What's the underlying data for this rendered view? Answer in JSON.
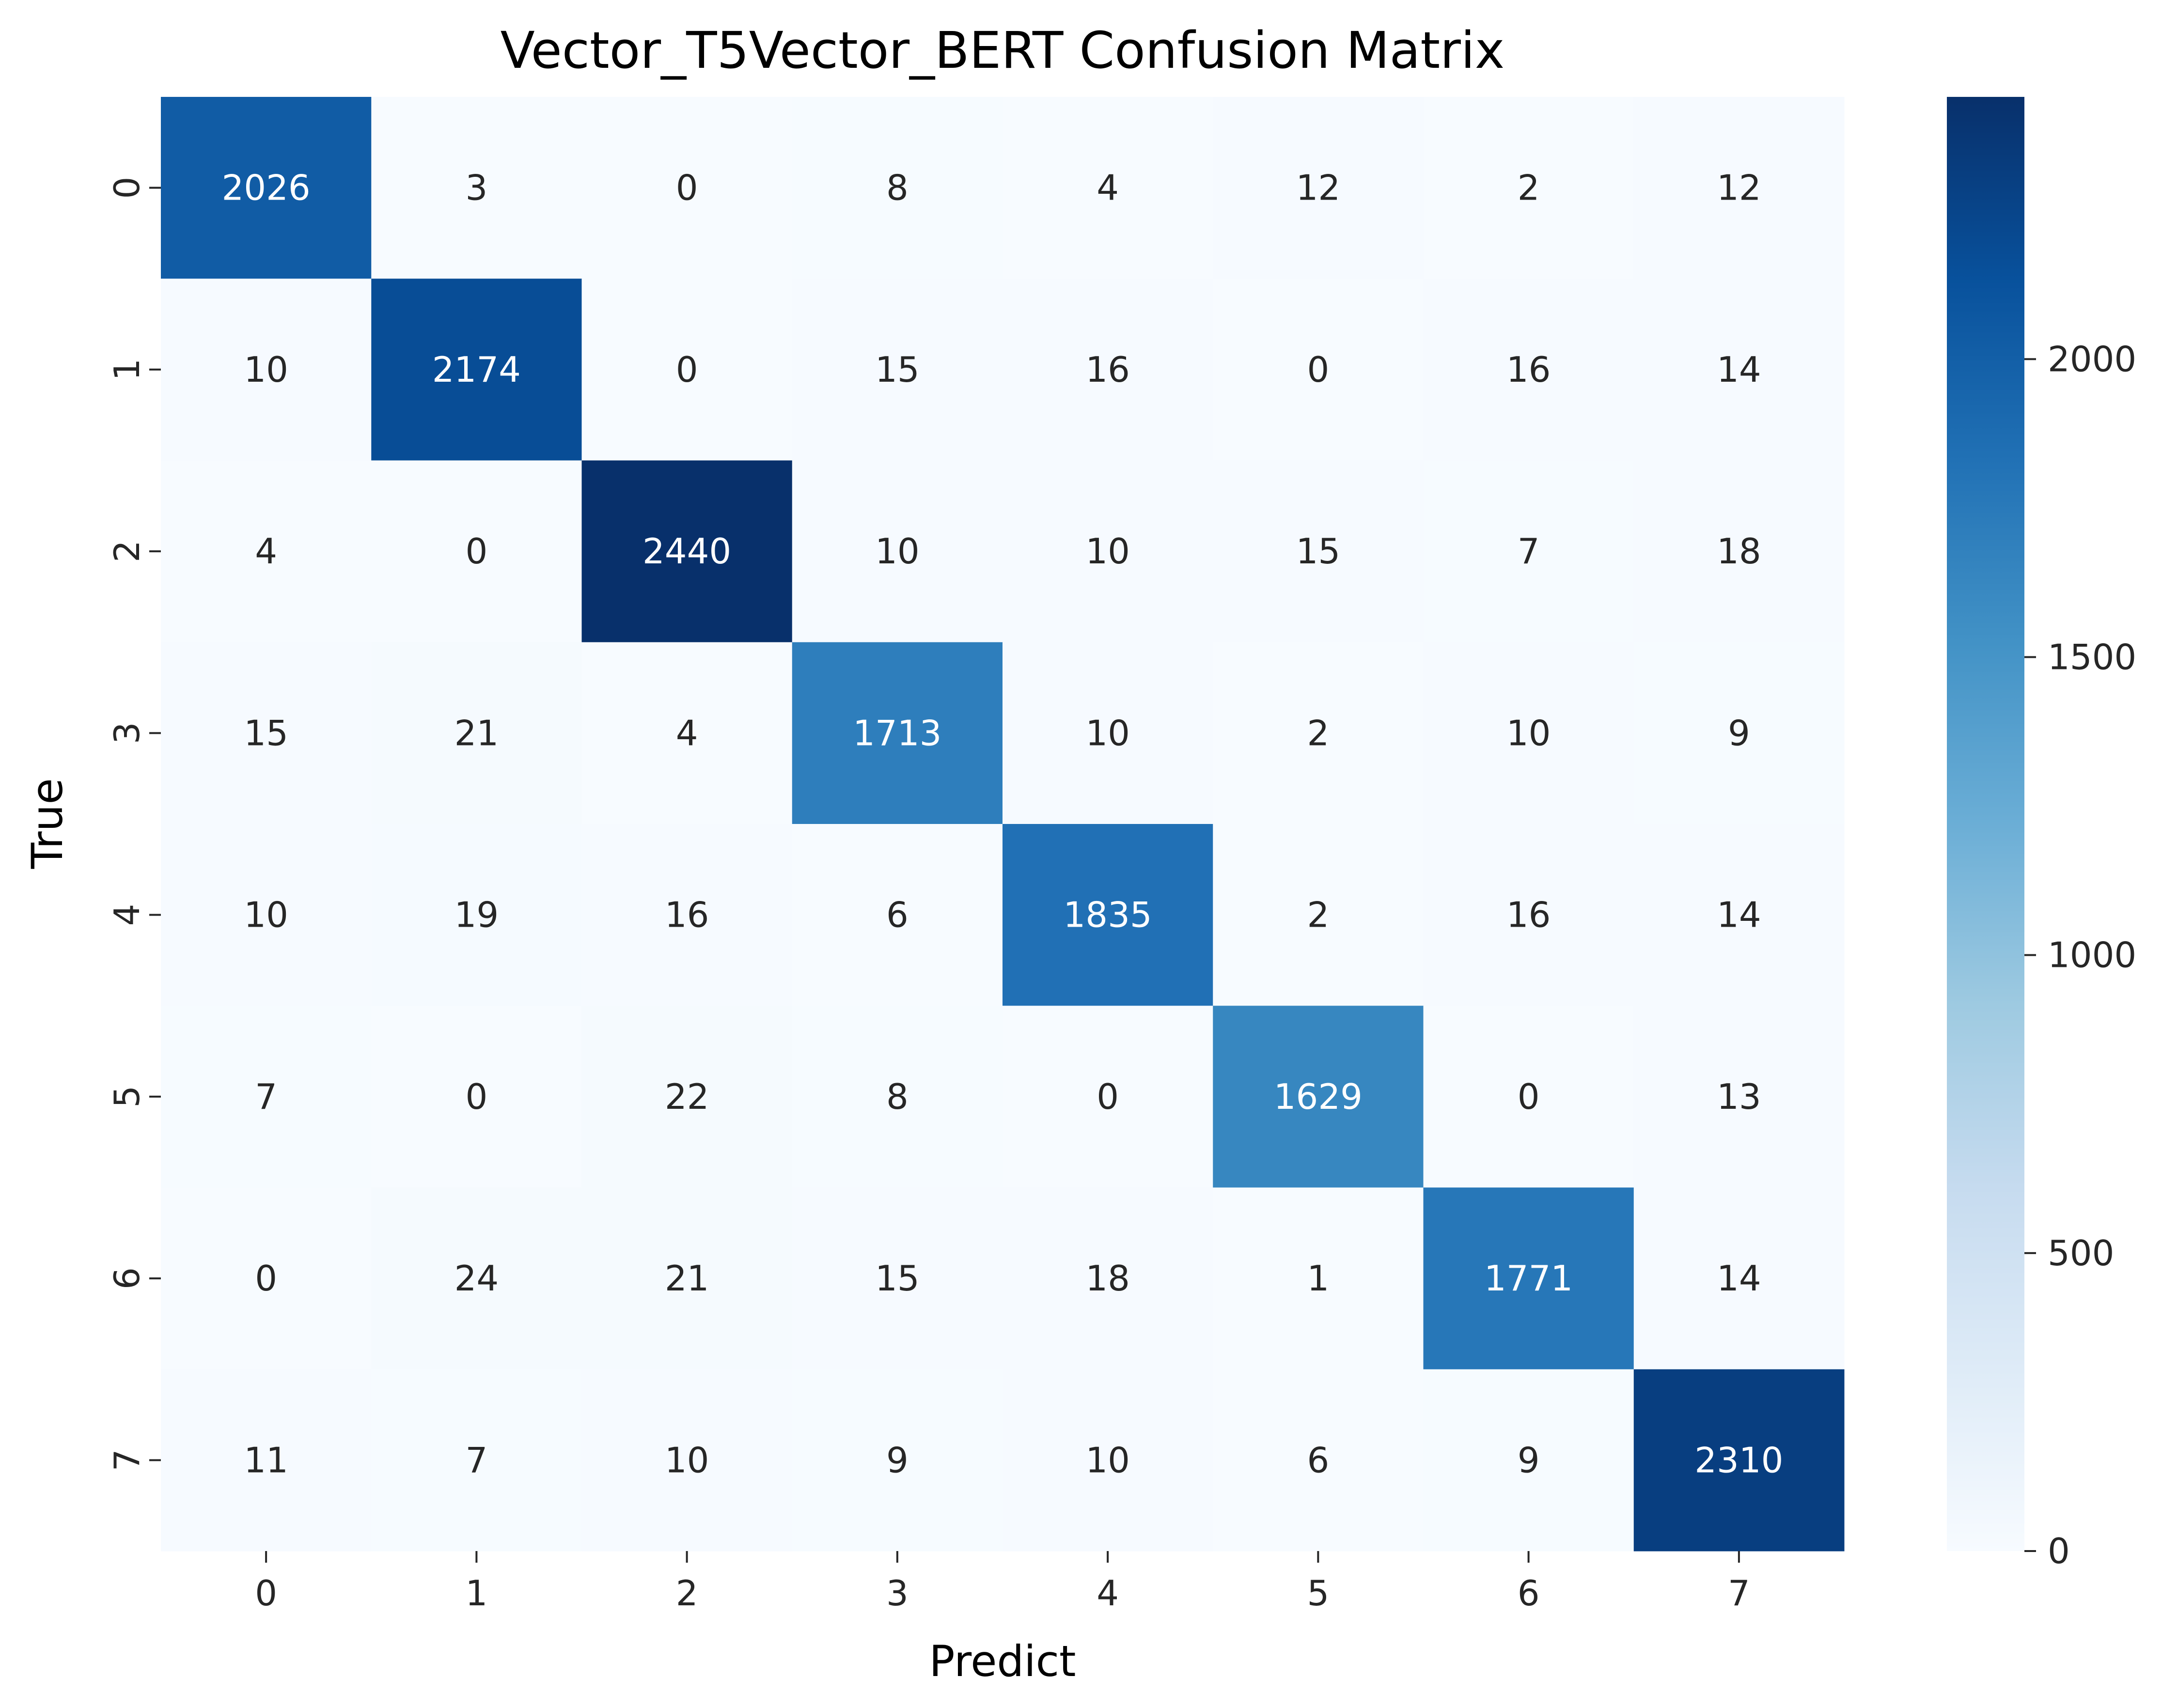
{
  "chart_data": {
    "type": "heatmap",
    "title": "Vector_T5Vector_BERT Confusion Matrix",
    "xlabel": "Predict",
    "ylabel": "True",
    "x_categories": [
      "0",
      "1",
      "2",
      "3",
      "4",
      "5",
      "6",
      "7"
    ],
    "y_categories": [
      "0",
      "1",
      "2",
      "3",
      "4",
      "5",
      "6",
      "7"
    ],
    "matrix": [
      [
        2026,
        3,
        0,
        8,
        4,
        12,
        2,
        12
      ],
      [
        10,
        2174,
        0,
        15,
        16,
        0,
        16,
        14
      ],
      [
        4,
        0,
        2440,
        10,
        10,
        15,
        7,
        18
      ],
      [
        15,
        21,
        4,
        1713,
        10,
        2,
        10,
        9
      ],
      [
        10,
        19,
        16,
        6,
        1835,
        2,
        16,
        14
      ],
      [
        7,
        0,
        22,
        8,
        0,
        1629,
        0,
        13
      ],
      [
        0,
        24,
        21,
        15,
        18,
        1,
        1771,
        14
      ],
      [
        11,
        7,
        10,
        9,
        10,
        6,
        9,
        2310
      ]
    ],
    "color_range": [
      0,
      2440
    ],
    "colorbar_ticks": [
      "0",
      "500",
      "1000",
      "1500",
      "2000"
    ],
    "colormap": "Blues",
    "colormap_stops": [
      "#f7fbff",
      "#deebf7",
      "#c6dbef",
      "#9ecae1",
      "#6baed6",
      "#4292c6",
      "#2171b5",
      "#08519c",
      "#08306b"
    ],
    "grid": false,
    "legend": "colorbar-right"
  }
}
